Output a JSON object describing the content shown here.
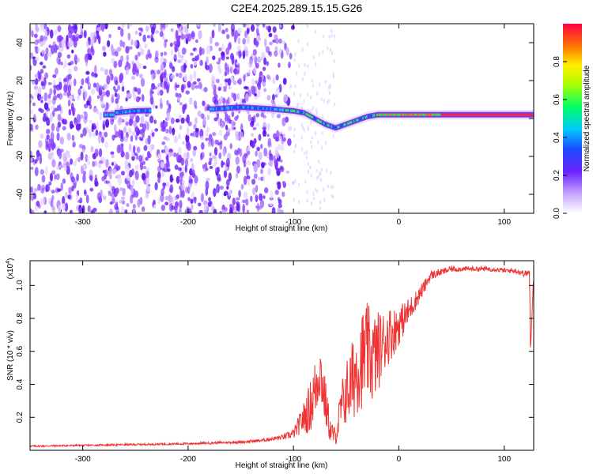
{
  "figure_title": "C2E4.2025.289.15.15.G26",
  "chart_data": [
    {
      "type": "heatmap",
      "title": "C2E4.2025.289.15.15.G26",
      "xlabel": "Height of straight line (km)",
      "ylabel": "Frequency (Hz)",
      "xlim": [
        -350,
        128
      ],
      "ylim": [
        -50,
        50
      ],
      "xticks": [
        -300,
        -200,
        -100,
        0,
        100
      ],
      "yticks": [
        -40,
        -20,
        0,
        20,
        40
      ],
      "colorbar": {
        "label": "Normalized spectral amplitude",
        "range": [
          0.0,
          1.0
        ],
        "ticks": [
          0.0,
          0.2,
          0.4,
          0.6,
          0.8
        ]
      },
      "ridge": {
        "description_points_x": [
          -270,
          -250,
          -175,
          -150,
          -120,
          -100,
          -90,
          -80,
          -70,
          -60,
          -50,
          -40,
          -30,
          -20,
          0,
          50,
          100,
          128
        ],
        "description_points_freq": [
          3,
          4,
          5,
          6,
          5,
          4,
          3,
          0,
          -3,
          -5,
          -3,
          -1,
          1,
          2,
          2,
          2,
          2,
          2
        ]
      }
    },
    {
      "type": "line",
      "xlabel": "Height of straight line (km)",
      "ylabel": "SNR (10 * v/v)",
      "y_multiplier_label": "(x10",
      "y_multiplier_exp": "4",
      "y_multiplier_close": ")",
      "xlim": [
        -350,
        128
      ],
      "ylim": [
        0,
        1.15
      ],
      "xticks": [
        -300,
        -200,
        -100,
        0,
        100
      ],
      "yticks": [
        0.2,
        0.4,
        0.6,
        0.8,
        1.0
      ],
      "color": "#ee3333",
      "series": [
        {
          "name": "SNR",
          "x": [
            -350,
            -300,
            -250,
            -200,
            -150,
            -130,
            -110,
            -100,
            -95,
            -90,
            -85,
            -80,
            -75,
            -70,
            -65,
            -60,
            -55,
            -50,
            -45,
            -40,
            -35,
            -30,
            -25,
            -20,
            -15,
            -10,
            -5,
            0,
            5,
            10,
            15,
            20,
            25,
            30,
            40,
            50,
            60,
            70,
            80,
            90,
            100,
            110,
            120,
            124,
            125,
            128
          ],
          "values": [
            0.025,
            0.03,
            0.035,
            0.04,
            0.05,
            0.06,
            0.08,
            0.1,
            0.15,
            0.2,
            0.25,
            0.35,
            0.5,
            0.3,
            0.12,
            0.08,
            0.25,
            0.35,
            0.4,
            0.5,
            0.55,
            0.6,
            0.55,
            0.6,
            0.65,
            0.7,
            0.72,
            0.76,
            0.8,
            0.85,
            0.9,
            0.95,
            1.0,
            1.06,
            1.08,
            1.1,
            1.1,
            1.1,
            1.1,
            1.1,
            1.09,
            1.09,
            1.07,
            1.08,
            0.6,
            1.08
          ],
          "noise_amp": [
            0.005,
            0.005,
            0.006,
            0.006,
            0.008,
            0.01,
            0.015,
            0.03,
            0.06,
            0.1,
            0.15,
            0.2,
            0.2,
            0.15,
            0.08,
            0.05,
            0.15,
            0.2,
            0.25,
            0.28,
            0.3,
            0.3,
            0.28,
            0.25,
            0.2,
            0.18,
            0.15,
            0.12,
            0.1,
            0.08,
            0.06,
            0.05,
            0.04,
            0.03,
            0.02,
            0.02,
            0.015,
            0.015,
            0.015,
            0.015,
            0.015,
            0.015,
            0.02,
            0.02,
            0.0,
            0.02
          ]
        }
      ]
    }
  ]
}
